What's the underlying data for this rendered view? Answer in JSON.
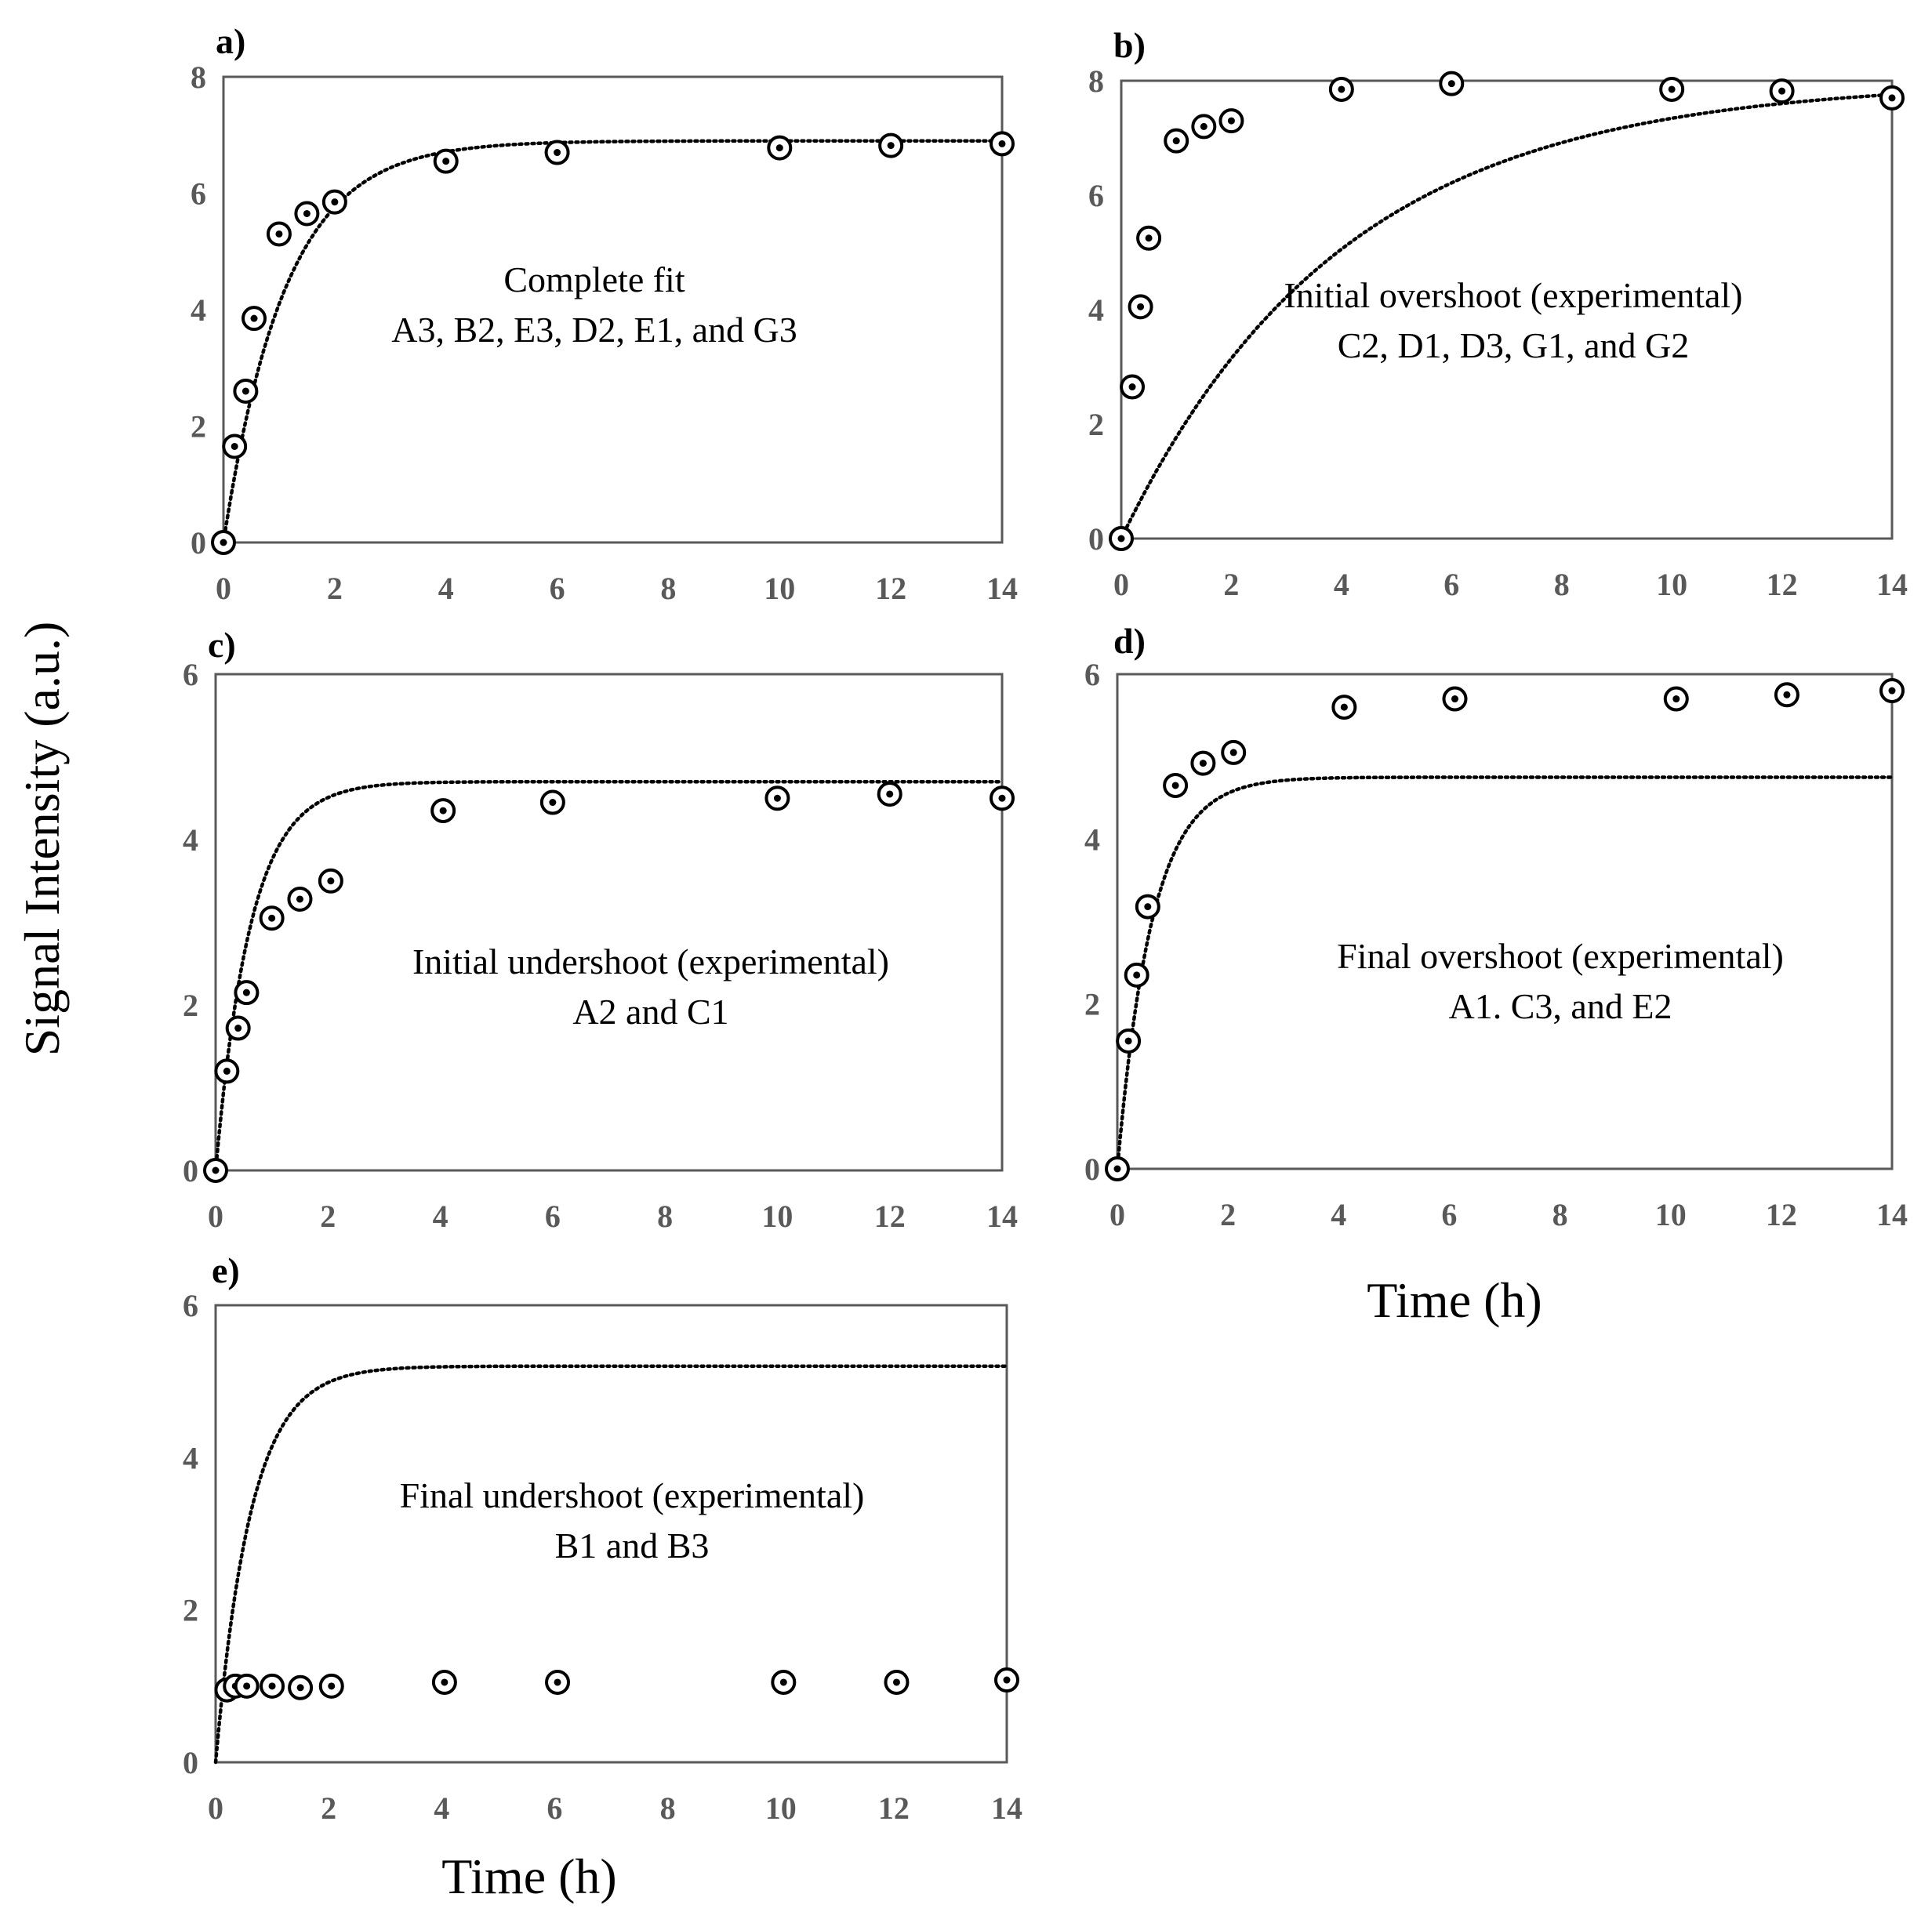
{
  "figure": {
    "y_axis_title": "Signal Intensity (a.u.)",
    "x_axis_title_right": "Time (h)",
    "x_axis_title_bottom": "Time (h)"
  },
  "chart_data": [
    {
      "panel": "a)",
      "type": "scatter",
      "annotation": [
        "Complete fit",
        "A3, B2, E3, D2, E1, and G3"
      ],
      "xlim": [
        0,
        14
      ],
      "ylim": [
        0,
        8
      ],
      "xticks": [
        0,
        2,
        4,
        6,
        8,
        10,
        12,
        14
      ],
      "yticks": [
        0,
        2,
        4,
        6,
        8
      ],
      "grid": false,
      "series": [
        {
          "kind": "points",
          "x": [
            0,
            0.2,
            0.4,
            0.55,
            1,
            1.5,
            2,
            4,
            6,
            10,
            12,
            14
          ],
          "y": [
            0,
            1.65,
            2.6,
            3.85,
            5.3,
            5.65,
            5.85,
            6.55,
            6.7,
            6.78,
            6.82,
            6.85
          ]
        },
        {
          "kind": "fit",
          "style": "dotted",
          "ymax": 6.9,
          "rate": 0.9
        }
      ]
    },
    {
      "panel": "b)",
      "type": "scatter",
      "annotation": [
        "Initial overshoot (experimental)",
        "C2, D1, D3, G1, and G2"
      ],
      "xlim": [
        0,
        14
      ],
      "ylim": [
        0,
        8
      ],
      "xticks": [
        0,
        2,
        4,
        6,
        8,
        10,
        12,
        14
      ],
      "yticks": [
        0,
        2,
        4,
        6,
        8
      ],
      "grid": false,
      "series": [
        {
          "kind": "points",
          "x": [
            0,
            0.2,
            0.35,
            0.5,
            1,
            1.5,
            2,
            4,
            6,
            10,
            12,
            14
          ],
          "y": [
            0,
            2.65,
            4.05,
            5.25,
            6.95,
            7.2,
            7.3,
            7.85,
            7.95,
            7.85,
            7.82,
            7.7
          ]
        },
        {
          "kind": "fit",
          "style": "dotted",
          "ymax": 8.0,
          "rate": 0.25
        }
      ]
    },
    {
      "panel": "c)",
      "type": "scatter",
      "annotation": [
        "Initial undershoot (experimental)",
        "A2 and C1"
      ],
      "xlim": [
        0,
        14
      ],
      "ylim": [
        0,
        6
      ],
      "xticks": [
        0,
        2,
        4,
        6,
        8,
        10,
        12,
        14
      ],
      "yticks": [
        0,
        2,
        4,
        6
      ],
      "grid": false,
      "series": [
        {
          "kind": "points",
          "x": [
            0,
            0.2,
            0.4,
            0.55,
            1,
            1.5,
            2.05,
            4.05,
            6,
            10,
            12,
            14
          ],
          "y": [
            0,
            1.2,
            1.72,
            2.15,
            3.05,
            3.28,
            3.5,
            4.35,
            4.45,
            4.5,
            4.55,
            4.5
          ]
        },
        {
          "kind": "fit",
          "style": "dotted",
          "ymax": 4.7,
          "rate": 1.6
        }
      ]
    },
    {
      "panel": "d)",
      "type": "scatter",
      "annotation": [
        "Final overshoot (experimental)",
        "A1. C3, and E2"
      ],
      "xlim": [
        0,
        14
      ],
      "ylim": [
        0,
        6
      ],
      "xticks": [
        0,
        2,
        4,
        6,
        8,
        10,
        12,
        14
      ],
      "yticks": [
        0,
        2,
        4,
        6
      ],
      "grid": false,
      "series": [
        {
          "kind": "points",
          "x": [
            0,
            0.2,
            0.35,
            0.55,
            1.05,
            1.55,
            2.1,
            4.1,
            6.1,
            10.1,
            12.1,
            14
          ],
          "y": [
            0,
            1.55,
            2.35,
            3.18,
            4.65,
            4.92,
            5.05,
            5.6,
            5.7,
            5.7,
            5.75,
            5.8
          ]
        },
        {
          "kind": "fit",
          "style": "dotted",
          "ymax": 4.75,
          "rate": 1.6
        }
      ]
    },
    {
      "panel": "e)",
      "type": "scatter",
      "annotation": [
        "Final undershoot (experimental)",
        "B1 and B3"
      ],
      "xlim": [
        0,
        14
      ],
      "ylim": [
        0,
        6
      ],
      "xticks": [
        0,
        2,
        4,
        6,
        8,
        10,
        12,
        14
      ],
      "yticks": [
        0,
        2,
        4,
        6
      ],
      "grid": false,
      "series": [
        {
          "kind": "points",
          "x": [
            0.2,
            0.35,
            0.55,
            1,
            1.5,
            2.05,
            4.05,
            6.05,
            10.05,
            12.05,
            14
          ],
          "y": [
            0.95,
            1.0,
            1.0,
            1.0,
            0.98,
            1.0,
            1.05,
            1.05,
            1.05,
            1.05,
            1.08
          ]
        },
        {
          "kind": "fit",
          "style": "dotted",
          "ymax": 5.2,
          "rate": 1.6
        }
      ]
    }
  ]
}
